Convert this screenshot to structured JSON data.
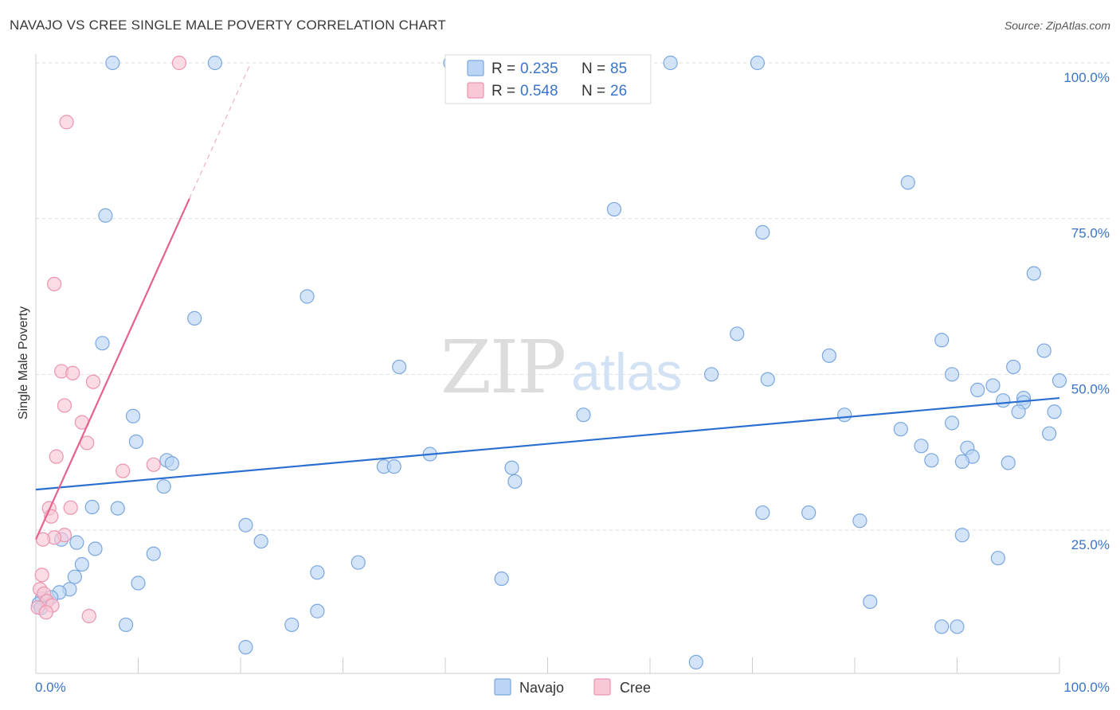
{
  "header": {
    "title": "NAVAJO VS CREE SINGLE MALE POVERTY CORRELATION CHART",
    "source": "Source: ZipAtlas.com"
  },
  "watermark": {
    "zip": "ZIP",
    "atlas": "atlas"
  },
  "colors": {
    "navajo_fill": "#bcd5f5",
    "navajo_stroke": "#7aa7e0",
    "navajo_line": "#2a6fcf",
    "cree_fill": "#f9c8d6",
    "cree_stroke": "#ec94ae",
    "cree_line": "#e4628c",
    "tick_label": "#3a74c9",
    "grid": "#dddddd"
  },
  "legend": {
    "rows": [
      {
        "series": "Navajo",
        "r_label": "R =",
        "r_value": "0.235",
        "n_label": "N =",
        "n_value": "85"
      },
      {
        "series": "Cree",
        "r_label": "R =",
        "r_value": "0.548",
        "n_label": "N =",
        "n_value": "26"
      }
    ]
  },
  "bottom_legend": {
    "items": [
      "Navajo",
      "Cree"
    ]
  },
  "chart_data": {
    "type": "scatter",
    "title": "NAVAJO VS CREE SINGLE MALE POVERTY CORRELATION CHART",
    "xlabel": "",
    "ylabel": "Single Male Poverty",
    "xlim": [
      0,
      100
    ],
    "ylim": [
      2,
      100
    ],
    "x_tick_labels": [
      {
        "value": 0,
        "label": "0.0%"
      },
      {
        "value": 100,
        "label": "100.0%"
      }
    ],
    "y_tick_labels": [
      {
        "value": 100,
        "label": "100.0%"
      },
      {
        "value": 75,
        "label": "75.0%"
      },
      {
        "value": 50,
        "label": "50.0%"
      },
      {
        "value": 25,
        "label": "25.0%"
      }
    ],
    "y_gridlines": [
      25,
      50,
      75,
      100
    ],
    "x_ticks": [
      0,
      10,
      20,
      30,
      40,
      50,
      60,
      70,
      80,
      90,
      100
    ],
    "grid": true,
    "series": [
      {
        "name": "Navajo",
        "r": 0.235,
        "n": 85,
        "trend": {
          "x": [
            0,
            100
          ],
          "y": [
            31.5,
            46.2
          ]
        },
        "points": [
          [
            7.5,
            100
          ],
          [
            17.5,
            100
          ],
          [
            40.5,
            100
          ],
          [
            62,
            100
          ],
          [
            70.5,
            100
          ],
          [
            6.8,
            75.5
          ],
          [
            56.5,
            76.5
          ],
          [
            85.2,
            80.8
          ],
          [
            71,
            72.8
          ],
          [
            97.5,
            66.2
          ],
          [
            26.5,
            62.5
          ],
          [
            15.5,
            59
          ],
          [
            6.5,
            55
          ],
          [
            68.5,
            56.5
          ],
          [
            88.5,
            55.5
          ],
          [
            98.5,
            53.8
          ],
          [
            77.5,
            53
          ],
          [
            35.5,
            51.2
          ],
          [
            95.5,
            51.2
          ],
          [
            66,
            50
          ],
          [
            89.5,
            50
          ],
          [
            100,
            49
          ],
          [
            71.5,
            49.2
          ],
          [
            93.5,
            48.2
          ],
          [
            92,
            47.5
          ],
          [
            96.5,
            46.2
          ],
          [
            94.5,
            45.8
          ],
          [
            96.5,
            45.5
          ],
          [
            96,
            44
          ],
          [
            99.5,
            44
          ],
          [
            53.5,
            43.5
          ],
          [
            79,
            43.5
          ],
          [
            9.5,
            43.3
          ],
          [
            89.5,
            42.2
          ],
          [
            84.5,
            41.2
          ],
          [
            99,
            40.5
          ],
          [
            9.8,
            39.2
          ],
          [
            86.5,
            38.5
          ],
          [
            91,
            38.2
          ],
          [
            91.5,
            36.8
          ],
          [
            38.5,
            37.2
          ],
          [
            87.5,
            36.2
          ],
          [
            90.5,
            36
          ],
          [
            95,
            35.8
          ],
          [
            12.8,
            36.2
          ],
          [
            13.3,
            35.7
          ],
          [
            34,
            35.2
          ],
          [
            35,
            35.2
          ],
          [
            46.5,
            35
          ],
          [
            46.8,
            32.8
          ],
          [
            12.5,
            32
          ],
          [
            5.5,
            28.7
          ],
          [
            8,
            28.5
          ],
          [
            75.5,
            27.8
          ],
          [
            71,
            27.8
          ],
          [
            80.5,
            26.5
          ],
          [
            20.5,
            25.8
          ],
          [
            90.5,
            24.2
          ],
          [
            2.5,
            23.5
          ],
          [
            22,
            23.2
          ],
          [
            4,
            23
          ],
          [
            5.8,
            22
          ],
          [
            11.5,
            21.2
          ],
          [
            94,
            20.5
          ],
          [
            4.5,
            19.5
          ],
          [
            31.5,
            19.8
          ],
          [
            27.5,
            18.2
          ],
          [
            3.8,
            17.5
          ],
          [
            45.5,
            17.2
          ],
          [
            10,
            16.5
          ],
          [
            3.3,
            15.5
          ],
          [
            2.3,
            15
          ],
          [
            1.5,
            14.2
          ],
          [
            0.6,
            14
          ],
          [
            1,
            13.5
          ],
          [
            0.3,
            13.2
          ],
          [
            0.5,
            12.5
          ],
          [
            81.5,
            13.5
          ],
          [
            27.5,
            12
          ],
          [
            8.8,
            9.8
          ],
          [
            25,
            9.8
          ],
          [
            88.5,
            9.5
          ],
          [
            90,
            9.5
          ],
          [
            20.5,
            6.2
          ],
          [
            64.5,
            3.8
          ]
        ]
      },
      {
        "name": "Cree",
        "r": 0.548,
        "n": 26,
        "trend": {
          "x": [
            0,
            15
          ],
          "y": [
            23.5,
            78.2
          ]
        },
        "trend_dashed": {
          "x": [
            15,
            21
          ],
          "y": [
            78.2,
            100
          ]
        },
        "points": [
          [
            14,
            100
          ],
          [
            3,
            90.5
          ],
          [
            1.8,
            64.5
          ],
          [
            2.5,
            50.5
          ],
          [
            3.6,
            50.2
          ],
          [
            5.6,
            48.8
          ],
          [
            2.8,
            45
          ],
          [
            4.5,
            42.3
          ],
          [
            5,
            39
          ],
          [
            2,
            36.8
          ],
          [
            8.5,
            34.5
          ],
          [
            11.5,
            35.5
          ],
          [
            1.3,
            28.5
          ],
          [
            3.4,
            28.6
          ],
          [
            1.5,
            27.2
          ],
          [
            2.8,
            24.2
          ],
          [
            1.8,
            23.8
          ],
          [
            0.7,
            23.5
          ],
          [
            0.6,
            17.8
          ],
          [
            0.4,
            15.5
          ],
          [
            0.8,
            14.8
          ],
          [
            1.1,
            13.6
          ],
          [
            1.6,
            12.9
          ],
          [
            0.2,
            12.6
          ],
          [
            1,
            11.8
          ],
          [
            5.2,
            11.2
          ]
        ]
      }
    ]
  }
}
